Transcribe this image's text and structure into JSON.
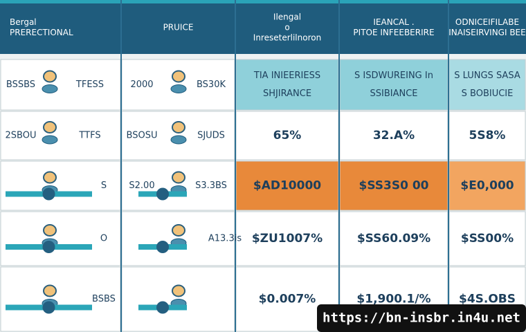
{
  "table": {
    "header": [
      [
        "Bergal",
        "PRERECTIONAL"
      ],
      [
        "PRUICE"
      ],
      [
        "Ilengal",
        "o",
        "Inreseterlilnoron"
      ],
      [
        "IEANCAL .",
        "PITOE INFEEBERIRE"
      ],
      [
        "ODNICEIFILABE",
        "INAISEIRVINGI BEE"
      ]
    ],
    "rows": [
      [
        [
          "BSSBS",
          "TFESS"
        ],
        [
          "2000",
          "BS30K"
        ],
        [
          "TIA INIEERIESS",
          "SHJIRANCE"
        ],
        [
          "S ISDWUREING In",
          "SSIBIANCE"
        ],
        [
          "S LUNGS SASA",
          "S BOBIUCIE"
        ]
      ],
      [
        [
          "2SBOU",
          "TTFS"
        ],
        [
          "BSOSU",
          "SJUDS"
        ],
        [
          "65%"
        ],
        [
          "32.A%"
        ],
        [
          "5S8%"
        ]
      ],
      [
        [
          "S"
        ],
        [
          "S2.00",
          "S3.3BS"
        ],
        [
          "$AD10000"
        ],
        [
          "$SS3S0 00"
        ],
        [
          "$E0,000"
        ]
      ],
      [
        [
          "O"
        ],
        [
          "A13.3is"
        ],
        [
          "$ZU1007%"
        ],
        [
          "$SS60.09%"
        ],
        [
          "$SS00%"
        ]
      ],
      [
        [
          "BSBS"
        ],
        [],
        [
          "$0.007%"
        ],
        [
          "$1,900.1/%"
        ],
        [
          "$4S.OBS"
        ]
      ]
    ]
  },
  "watermark": "https://bn-insbr.in4u.net"
}
